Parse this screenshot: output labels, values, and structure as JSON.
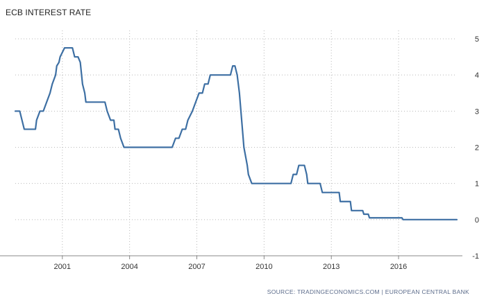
{
  "chart_data": {
    "type": "line",
    "title": "ECB INTEREST RATE",
    "source": "SOURCE: TRADINGECONOMICS.COM | EUROPEAN CENTRAL BANK",
    "xlabel": "",
    "ylabel": "",
    "xlim": [
      1998.9,
      2018.6
    ],
    "ylim": [
      -1,
      5
    ],
    "x_ticks": [
      2001,
      2004,
      2007,
      2010,
      2013,
      2016
    ],
    "y_ticks": [
      -1,
      0,
      1,
      2,
      3,
      4,
      5
    ],
    "grid": true,
    "y_axis_side": "right",
    "line_color": "#3d6fa3",
    "series": [
      {
        "values": [
          [
            1998.9,
            3.0
          ],
          [
            1999.1,
            3.0
          ],
          [
            1999.3,
            2.5
          ],
          [
            1999.8,
            2.5
          ],
          [
            1999.85,
            2.75
          ],
          [
            2000.0,
            3.0
          ],
          [
            2000.15,
            3.0
          ],
          [
            2000.3,
            3.25
          ],
          [
            2000.45,
            3.5
          ],
          [
            2000.55,
            3.75
          ],
          [
            2000.7,
            4.0
          ],
          [
            2000.75,
            4.25
          ],
          [
            2000.85,
            4.35
          ],
          [
            2000.9,
            4.5
          ],
          [
            2001.1,
            4.75
          ],
          [
            2001.35,
            4.75
          ],
          [
            2001.45,
            4.75
          ],
          [
            2001.55,
            4.5
          ],
          [
            2001.7,
            4.5
          ],
          [
            2001.8,
            4.35
          ],
          [
            2001.9,
            3.75
          ],
          [
            2002.0,
            3.5
          ],
          [
            2002.05,
            3.25
          ],
          [
            2002.9,
            3.25
          ],
          [
            2003.0,
            3.0
          ],
          [
            2003.15,
            2.75
          ],
          [
            2003.3,
            2.75
          ],
          [
            2003.35,
            2.5
          ],
          [
            2003.5,
            2.5
          ],
          [
            2003.6,
            2.25
          ],
          [
            2003.75,
            2.0
          ],
          [
            2005.9,
            2.0
          ],
          [
            2006.05,
            2.25
          ],
          [
            2006.2,
            2.25
          ],
          [
            2006.35,
            2.5
          ],
          [
            2006.5,
            2.5
          ],
          [
            2006.6,
            2.75
          ],
          [
            2006.8,
            3.0
          ],
          [
            2006.95,
            3.25
          ],
          [
            2007.1,
            3.5
          ],
          [
            2007.25,
            3.5
          ],
          [
            2007.35,
            3.75
          ],
          [
            2007.5,
            3.75
          ],
          [
            2007.6,
            4.0
          ],
          [
            2008.5,
            4.0
          ],
          [
            2008.6,
            4.25
          ],
          [
            2008.7,
            4.25
          ],
          [
            2008.8,
            4.0
          ],
          [
            2008.9,
            3.5
          ],
          [
            2009.0,
            2.75
          ],
          [
            2009.1,
            2.0
          ],
          [
            2009.25,
            1.5
          ],
          [
            2009.3,
            1.25
          ],
          [
            2009.45,
            1.0
          ],
          [
            2011.2,
            1.0
          ],
          [
            2011.3,
            1.25
          ],
          [
            2011.45,
            1.25
          ],
          [
            2011.55,
            1.5
          ],
          [
            2011.8,
            1.5
          ],
          [
            2011.9,
            1.25
          ],
          [
            2011.95,
            1.0
          ],
          [
            2012.5,
            1.0
          ],
          [
            2012.6,
            0.75
          ],
          [
            2013.35,
            0.75
          ],
          [
            2013.4,
            0.5
          ],
          [
            2013.85,
            0.5
          ],
          [
            2013.9,
            0.25
          ],
          [
            2014.4,
            0.25
          ],
          [
            2014.45,
            0.15
          ],
          [
            2014.65,
            0.15
          ],
          [
            2014.7,
            0.05
          ],
          [
            2016.15,
            0.05
          ],
          [
            2016.2,
            0.0
          ],
          [
            2018.6,
            0.0
          ]
        ]
      }
    ]
  }
}
